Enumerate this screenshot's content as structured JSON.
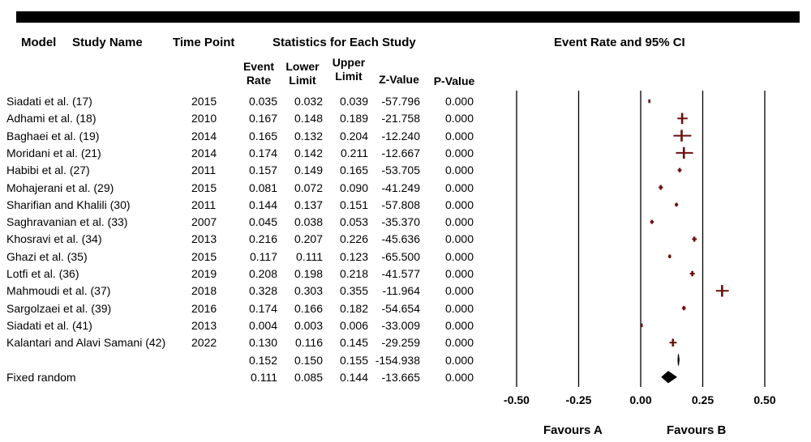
{
  "header": {
    "model": "Model",
    "study_name": "Study Name",
    "time_point": "Time Point",
    "statistics": "Statistics for Each Study",
    "ci": "Event Rate and 95% CI",
    "event_rate": "Event Rate",
    "lower_limit": "Lower Limit",
    "upper_limit": "Upper Limit",
    "z_value": "Z-Value",
    "p_value": "P-Value"
  },
  "chart_data": {
    "type": "table",
    "columns": [
      "Study Name",
      "Time Point",
      "Event Rate",
      "Lower Limit",
      "Upper Limit",
      "Z-Value",
      "P-Value"
    ],
    "rows": [
      {
        "model": "",
        "study": "Siadati et al. (17)",
        "year": "2015",
        "rate": 0.035,
        "lower": 0.032,
        "upper": 0.039,
        "z": "-57.796",
        "p": "0.000"
      },
      {
        "model": "",
        "study": "Adhami et al. (18)",
        "year": "2010",
        "rate": 0.167,
        "lower": 0.148,
        "upper": 0.189,
        "z": "-21.758",
        "p": "0.000"
      },
      {
        "model": "",
        "study": "Baghaei et al. (19)",
        "year": "2014",
        "rate": 0.165,
        "lower": 0.132,
        "upper": 0.204,
        "z": "-12.240",
        "p": "0.000"
      },
      {
        "model": "",
        "study": "Moridani et al. (21)",
        "year": "2014",
        "rate": 0.174,
        "lower": 0.142,
        "upper": 0.211,
        "z": "-12.667",
        "p": "0.000"
      },
      {
        "model": "",
        "study": "Habibi et al. (27)",
        "year": "2011",
        "rate": 0.157,
        "lower": 0.149,
        "upper": 0.165,
        "z": "-53.705",
        "p": "0.000"
      },
      {
        "model": "",
        "study": "Mohajerani et al. (29)",
        "year": "2015",
        "rate": 0.081,
        "lower": 0.072,
        "upper": 0.09,
        "z": "-41.249",
        "p": "0.000"
      },
      {
        "model": "",
        "study": "Sharifian and Khalili (30)",
        "year": "2011",
        "rate": 0.144,
        "lower": 0.137,
        "upper": 0.151,
        "z": "-57.808",
        "p": "0.000"
      },
      {
        "model": "",
        "study": "Saghravanian et al. (33)",
        "year": "2007",
        "rate": 0.045,
        "lower": 0.038,
        "upper": 0.053,
        "z": "-35.370",
        "p": "0.000"
      },
      {
        "model": "",
        "study": "Khosravi et al. (34)",
        "year": "2013",
        "rate": 0.216,
        "lower": 0.207,
        "upper": 0.226,
        "z": "-45.636",
        "p": "0.000"
      },
      {
        "model": "",
        "study": "Ghazi et al. (35)",
        "year": "2015",
        "rate": 0.117,
        "lower": 0.111,
        "upper": 0.123,
        "z": "-65.500",
        "p": "0.000"
      },
      {
        "model": "",
        "study": "Lotfi et al. (36)",
        "year": "2019",
        "rate": 0.208,
        "lower": 0.198,
        "upper": 0.218,
        "z": "-41.577",
        "p": "0.000"
      },
      {
        "model": "",
        "study": "Mahmoudi et al. (37)",
        "year": "2018",
        "rate": 0.328,
        "lower": 0.303,
        "upper": 0.355,
        "z": "-11.964",
        "p": "0.000"
      },
      {
        "model": "",
        "study": "Sargolzaei et al. (39)",
        "year": "2016",
        "rate": 0.174,
        "lower": 0.166,
        "upper": 0.182,
        "z": "-54.654",
        "p": "0.000"
      },
      {
        "model": "",
        "study": "Siadati et al. (41)",
        "year": "2013",
        "rate": 0.004,
        "lower": 0.003,
        "upper": 0.006,
        "z": "-33.009",
        "p": "0.000"
      },
      {
        "model": "",
        "study": "Kalantari and Alavi Samani (42)",
        "year": "2022",
        "rate": 0.13,
        "lower": 0.116,
        "upper": 0.145,
        "z": "-29.259",
        "p": "0.000"
      }
    ],
    "summaries": [
      {
        "model": "",
        "study": "",
        "year": "",
        "rate": 0.152,
        "lower": 0.15,
        "upper": 0.155,
        "z": "-154.938",
        "p": "0.000"
      },
      {
        "model": "Fixed random",
        "study": "",
        "year": "",
        "rate": 0.111,
        "lower": 0.085,
        "upper": 0.144,
        "z": "-13.665",
        "p": "0.000"
      }
    ],
    "xlim": [
      -0.5,
      0.5
    ],
    "x_ticks": [
      "-0.50",
      "-0.25",
      "0.00",
      "0.25",
      "0.50"
    ],
    "x_tick_values": [
      -0.5,
      -0.25,
      0,
      0.25,
      0.5
    ],
    "favours_left": "Favours A",
    "favours_right": "Favours B",
    "marker_color": "#6b0f0f",
    "summary_color": "#000000"
  }
}
